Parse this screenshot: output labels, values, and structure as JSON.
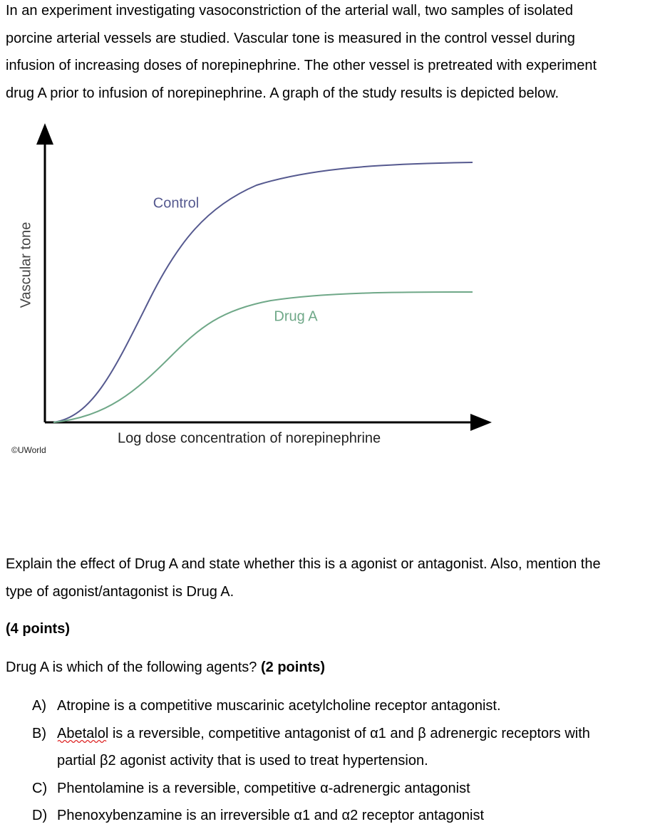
{
  "intro": {
    "lines": [
      "In an experiment investigating vasoconstriction of the arterial wall, two samples of isolated",
      "porcine arterial vessels are studied.  Vascular tone is measured in the control vessel during",
      "infusion of increasing doses of norepinephrine.  The other vessel is pretreated with experiment",
      "drug A prior to infusion of norepinephrine.  A graph of the study results is depicted below."
    ]
  },
  "figure": {
    "y_label": "Vascular tone",
    "x_label": "Log dose concentration of norepinephrine",
    "curves": [
      {
        "label": "Control"
      },
      {
        "label": "Drug A"
      }
    ],
    "credit": "©UWorld"
  },
  "question": {
    "lines": [
      "Explain the effect of Drug A and state whether this is a agonist or antagonist. Also, mention the",
      "type of agonist/antagonist is Drug A."
    ],
    "points": "(4 points)"
  },
  "mcq": {
    "stem": "Drug A is which of the following agents?",
    "points": "(2 points)",
    "options": [
      {
        "letter": "A)",
        "lines": [
          "Atropine is a competitive muscarinic acetylcholine receptor antagonist."
        ]
      },
      {
        "letter": "B)",
        "lines": [
          "Abetalol is a reversible, competitive antagonist of α1 and β adrenergic receptors with",
          "partial β2 agonist activity that is used to treat hypertension."
        ]
      },
      {
        "letter": "C)",
        "lines": [
          "Phentolamine is a reversible, competitive α-adrenergic antagonist"
        ]
      },
      {
        "letter": "D)",
        "lines": [
          "Phenoxybenzamine is an irreversible α1 and α2 receptor antagonist"
        ]
      }
    ]
  }
}
